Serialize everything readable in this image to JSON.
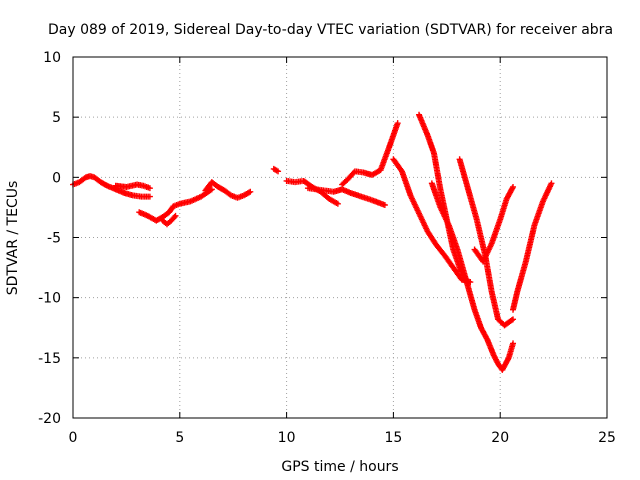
{
  "chart_data": {
    "type": "scatter",
    "title": "Day 089 of 2019, Sidereal Day-to-day VTEC variation (SDTVAR) for receiver abra",
    "xlabel": "GPS time / hours",
    "ylabel": "SDTVAR / TECUs",
    "xlim": [
      0,
      25
    ],
    "ylim": [
      -20,
      10
    ],
    "x_ticks": [
      "0",
      "5",
      "10",
      "15",
      "20",
      "25"
    ],
    "y_ticks": [
      "-20",
      "-15",
      "-10",
      "-5",
      "0",
      "5",
      "10"
    ],
    "grid": true,
    "legend": "none",
    "marker": "+",
    "color": "#ff0000",
    "series": [
      {
        "x": [
          0.0,
          0.3,
          0.6,
          0.8,
          1.0,
          1.3,
          1.6,
          2.0,
          2.4,
          2.8,
          3.2,
          3.6
        ],
        "y": [
          -0.6,
          -0.4,
          0.0,
          0.1,
          0.0,
          -0.4,
          -0.7,
          -1.0,
          -1.3,
          -1.5,
          -1.6,
          -1.6
        ]
      },
      {
        "x": [
          2.0,
          2.5,
          3.0,
          3.3,
          3.6
        ],
        "y": [
          -0.7,
          -0.8,
          -0.6,
          -0.7,
          -0.9
        ]
      },
      {
        "x": [
          3.1,
          3.5,
          3.9,
          4.2,
          4.5,
          4.7,
          5.0,
          5.5,
          6.0,
          6.5
        ],
        "y": [
          -2.9,
          -3.2,
          -3.6,
          -3.3,
          -2.9,
          -2.4,
          -2.2,
          -2.0,
          -1.6,
          -1.0
        ]
      },
      {
        "x": [
          4.2,
          4.4,
          4.6,
          4.8
        ],
        "y": [
          -3.6,
          -3.9,
          -3.6,
          -3.2
        ]
      },
      {
        "x": [
          6.2,
          6.5,
          6.8,
          7.1,
          7.4,
          7.7,
          8.0,
          8.3
        ],
        "y": [
          -1.1,
          -0.4,
          -0.8,
          -1.1,
          -1.5,
          -1.7,
          -1.5,
          -1.2
        ]
      },
      {
        "x": [
          9.4,
          9.6
        ],
        "y": [
          0.7,
          0.5
        ]
      },
      {
        "x": [
          10.0,
          10.4,
          10.8,
          11.2,
          11.6,
          12.0,
          12.4
        ],
        "y": [
          -0.3,
          -0.4,
          -0.3,
          -0.8,
          -1.2,
          -1.8,
          -2.2
        ]
      },
      {
        "x": [
          11.0,
          11.4,
          11.8,
          12.2,
          12.6,
          13.0,
          13.5,
          14.0,
          14.6
        ],
        "y": [
          -0.9,
          -1.0,
          -1.1,
          -1.2,
          -1.0,
          -1.3,
          -1.6,
          -1.9,
          -2.3
        ]
      },
      {
        "x": [
          12.6,
          12.9,
          13.2,
          13.6,
          14.0,
          14.4,
          14.8,
          15.2
        ],
        "y": [
          -0.6,
          -0.1,
          0.5,
          0.4,
          0.2,
          0.6,
          2.5,
          4.5
        ]
      },
      {
        "x": [
          15.0,
          15.4,
          15.8,
          16.2,
          16.6,
          17.0,
          17.4,
          17.8,
          18.2,
          18.6
        ],
        "y": [
          1.5,
          0.5,
          -1.5,
          -3.0,
          -4.5,
          -5.6,
          -6.5,
          -7.5,
          -8.5,
          -8.7
        ]
      },
      {
        "x": [
          16.2,
          16.6,
          16.9,
          17.2,
          17.5,
          17.8,
          18.1,
          18.4
        ],
        "y": [
          5.2,
          3.5,
          2.0,
          -1.0,
          -3.5,
          -6.0,
          -7.5,
          -8.5
        ]
      },
      {
        "x": [
          16.8,
          17.2,
          17.6,
          18.0,
          18.4,
          18.8,
          19.1,
          19.4,
          19.7,
          19.9,
          20.1,
          20.4,
          20.6
        ],
        "y": [
          -0.5,
          -2.5,
          -4.0,
          -6.0,
          -8.5,
          -11.0,
          -12.5,
          -13.5,
          -14.8,
          -15.5,
          -16.0,
          -15.0,
          -13.8
        ]
      },
      {
        "x": [
          18.1,
          18.5,
          18.9,
          19.3,
          19.6,
          19.9,
          20.2,
          20.6
        ],
        "y": [
          1.5,
          -1.0,
          -3.5,
          -6.5,
          -9.5,
          -11.8,
          -12.3,
          -11.8
        ]
      },
      {
        "x": [
          18.8,
          19.2,
          19.6,
          20.0,
          20.3,
          20.6
        ],
        "y": [
          -6.0,
          -7.0,
          -5.5,
          -3.5,
          -1.8,
          -0.8
        ]
      },
      {
        "x": [
          20.6,
          20.8,
          21.2,
          21.6,
          22.0,
          22.4
        ],
        "y": [
          -11.0,
          -9.5,
          -7.0,
          -4.0,
          -2.0,
          -0.5
        ]
      }
    ]
  }
}
